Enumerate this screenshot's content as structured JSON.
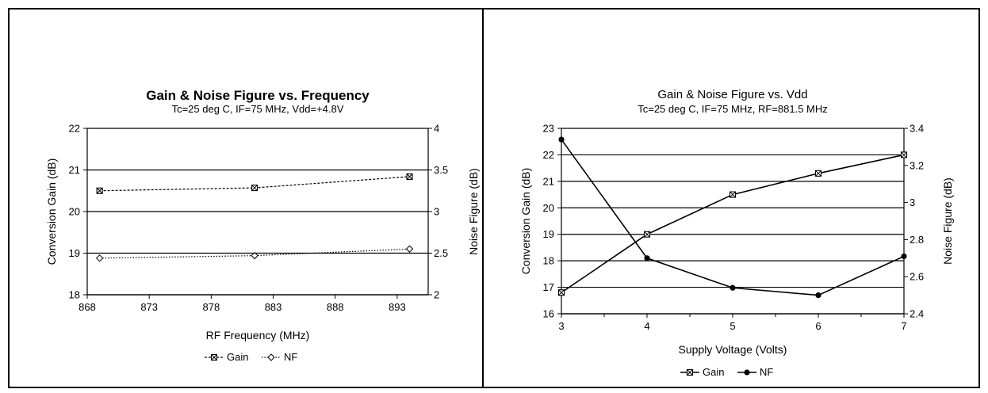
{
  "chart_data": [
    {
      "type": "line",
      "title": "Gain & Noise Figure vs. Frequency",
      "subtitle": "Tc=25 deg C, IF=75 MHz, Vdd=+4.8V",
      "xlabel": "RF Frequency (MHz)",
      "ylabel": "Conversion Gain (dB)",
      "y2label": "Noise Figure (dB)",
      "xlim": [
        868,
        895.5
      ],
      "ylim": [
        18,
        22
      ],
      "y2lim": [
        2,
        4
      ],
      "x_ticks": [
        "868",
        "873",
        "878",
        "883",
        "888",
        "893"
      ],
      "y_ticks": [
        "18",
        "19",
        "20",
        "21",
        "22"
      ],
      "y2_ticks": [
        "2",
        "2.5",
        "3",
        "3.5",
        "4"
      ],
      "grid": "horizontal",
      "legend": "bottom",
      "series": [
        {
          "name": "Gain",
          "axis": "left",
          "marker": "boxed-x",
          "line": "dashed",
          "x": [
            869,
            881.5,
            894
          ],
          "values": [
            20.5,
            20.57,
            20.84
          ]
        },
        {
          "name": "NF",
          "axis": "right",
          "marker": "open-diamond",
          "line": "dotted",
          "x": [
            869,
            881.5,
            894
          ],
          "values": [
            2.44,
            2.47,
            2.55
          ]
        }
      ]
    },
    {
      "type": "line",
      "title": "Gain & Noise Figure vs. Vdd",
      "subtitle": "Tc=25 deg C, IF=75 MHz, RF=881.5 MHz",
      "xlabel": "Supply Voltage (Volts)",
      "ylabel": "Conversion Gain (dB)",
      "y2label": "Noise Figure (dB)",
      "xlim": [
        3,
        7
      ],
      "ylim": [
        16,
        23
      ],
      "y2lim": [
        2.4,
        3.4
      ],
      "x_ticks": [
        "3",
        "4",
        "5",
        "6",
        "7"
      ],
      "y_ticks": [
        "16",
        "17",
        "18",
        "19",
        "20",
        "21",
        "22",
        "23"
      ],
      "y2_ticks": [
        "2.4",
        "2.6",
        "2.8",
        "3",
        "3.2",
        "3.4"
      ],
      "grid": "horizontal",
      "legend": "bottom",
      "series": [
        {
          "name": "Gain",
          "axis": "left",
          "marker": "boxed-x",
          "line": "solid",
          "x": [
            3,
            4,
            5,
            6,
            7
          ],
          "values": [
            16.8,
            19.0,
            20.5,
            21.3,
            22.0
          ]
        },
        {
          "name": "NF",
          "axis": "right",
          "marker": "filled-circle",
          "line": "solid",
          "x": [
            3,
            4,
            5,
            6,
            7
          ],
          "values": [
            3.34,
            2.7,
            2.54,
            2.5,
            2.71
          ]
        }
      ]
    }
  ]
}
